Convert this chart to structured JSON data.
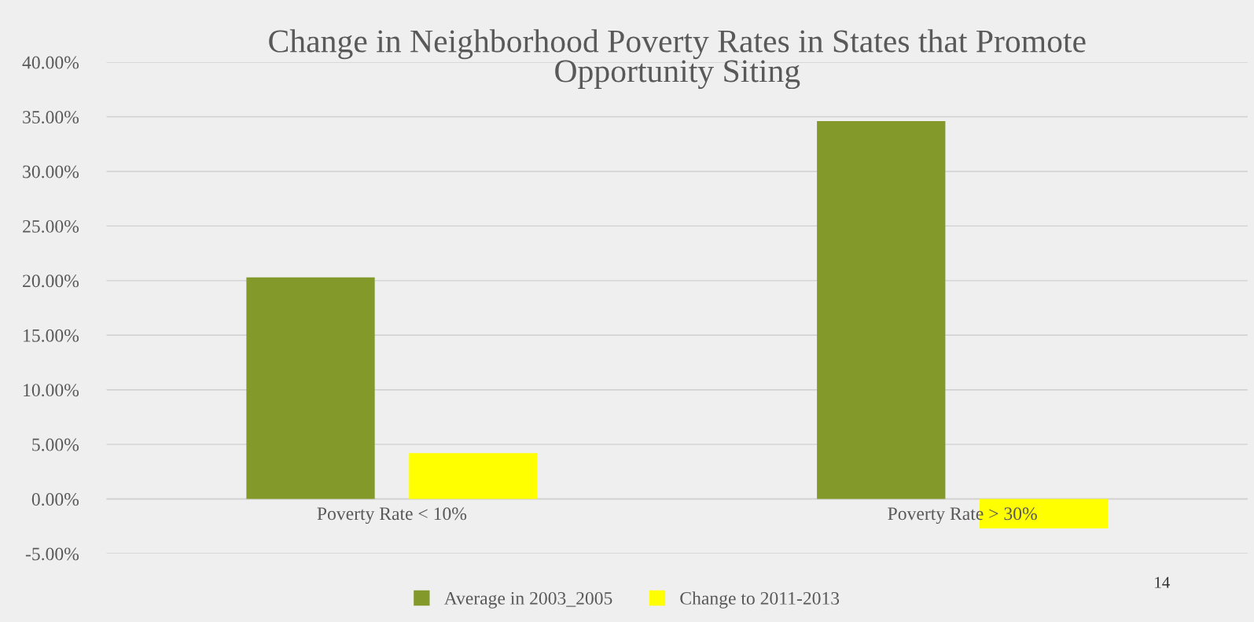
{
  "chart_data": {
    "type": "bar",
    "title": "Change in Neighborhood Poverty Rates in States that Promote\nOpportunity Siting",
    "categories": [
      "Poverty Rate < 10%",
      "Poverty Rate > 30%"
    ],
    "series": [
      {
        "name": "Average in 2003_2005",
        "color": "#839a2b",
        "values": [
          20.3,
          34.6
        ]
      },
      {
        "name": "Change to 2011-2013",
        "color": "#ffff00",
        "values": [
          4.2,
          -2.7
        ]
      }
    ],
    "ylim": [
      -5,
      40
    ],
    "yticks": [
      {
        "value": -5,
        "label": "-5.00%"
      },
      {
        "value": 0,
        "label": "0.00%"
      },
      {
        "value": 5,
        "label": "5.00%"
      },
      {
        "value": 10,
        "label": "10.00%"
      },
      {
        "value": 15,
        "label": "15.00%"
      },
      {
        "value": 20,
        "label": "20.00%"
      },
      {
        "value": 25,
        "label": "25.00%"
      },
      {
        "value": 30,
        "label": "30.00%"
      },
      {
        "value": 35,
        "label": "35.00%"
      },
      {
        "value": 40,
        "label": "40.00%"
      }
    ],
    "grid": "y",
    "legend": "bottom",
    "annotations": [
      "14"
    ]
  }
}
